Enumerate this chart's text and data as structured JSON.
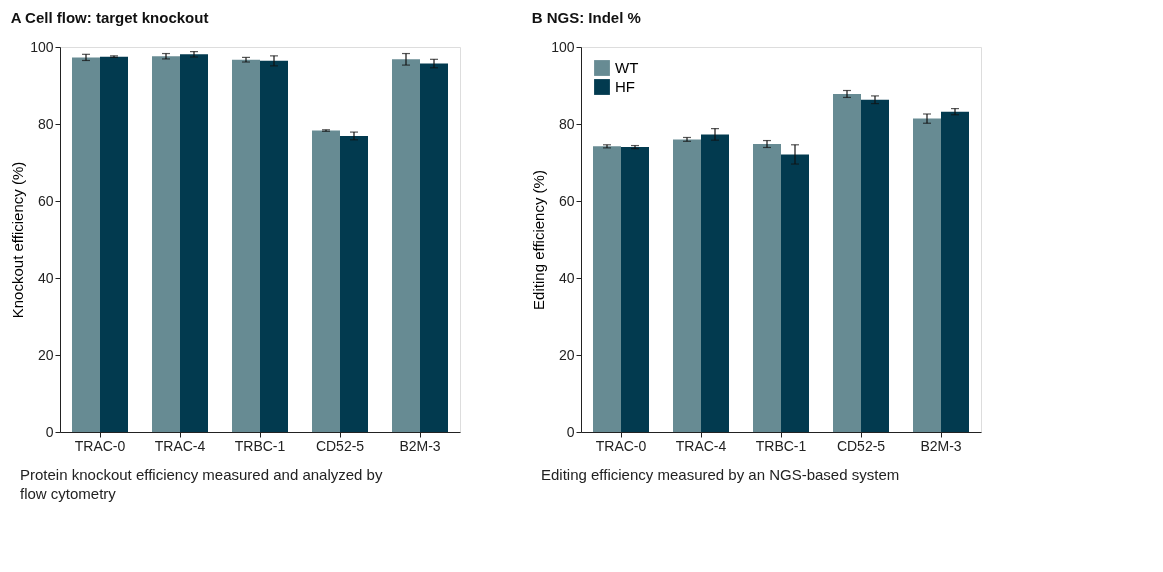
{
  "chart_data": [
    {
      "type": "bar",
      "title": "A  Cell flow: target knockout",
      "ylabel": "Knockout efficiency (%)",
      "categories": [
        "TRAC-0",
        "TRAC-4",
        "TRBC-1",
        "CD52-5",
        "B2M-3"
      ],
      "ylim": [
        0,
        100
      ],
      "yticks": [
        0,
        20,
        40,
        60,
        80,
        100
      ],
      "grid": false,
      "legend": false,
      "series": [
        {
          "color": "#678b93",
          "values": [
            97.3,
            97.6,
            96.7,
            78.3,
            96.8
          ],
          "errors": [
            0.8,
            0.7,
            0.6,
            0.2,
            1.5
          ]
        },
        {
          "color": "#023a4f",
          "values": [
            97.5,
            98.1,
            96.4,
            76.9,
            95.7
          ],
          "errors": [
            0.2,
            0.7,
            1.3,
            1.0,
            1.1
          ]
        }
      ],
      "annotations": [
        "Protein knockout efficiency measured and analyzed by flow cytometry"
      ]
    },
    {
      "type": "bar",
      "title": "B  NGS: Indel %",
      "ylabel": "Editing efficiency (%)",
      "categories": [
        "TRAC-0",
        "TRAC-4",
        "TRBC-1",
        "CD52-5",
        "B2M-3"
      ],
      "ylim": [
        0,
        100
      ],
      "yticks": [
        0,
        20,
        40,
        60,
        80,
        100
      ],
      "grid": false,
      "legend": "top left",
      "series": [
        {
          "name": "WT",
          "color": "#678b93",
          "values": [
            74.2,
            76.0,
            74.8,
            87.8,
            81.4
          ],
          "errors": [
            0.4,
            0.5,
            0.9,
            0.9,
            1.2
          ]
        },
        {
          "name": "HF",
          "color": "#023a4f",
          "values": [
            74.0,
            77.3,
            72.1,
            86.3,
            83.2
          ],
          "errors": [
            0.4,
            1.5,
            2.5,
            1.0,
            0.8
          ]
        }
      ],
      "annotations": [
        "Editing efficiency measured by an NGS-based system"
      ]
    }
  ]
}
